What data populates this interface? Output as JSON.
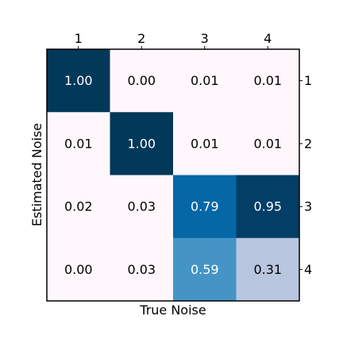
{
  "chart_data": {
    "type": "heatmap",
    "title": "",
    "xlabel": "True Noise",
    "ylabel": "Estimated Noise",
    "x_tick_labels": [
      "1",
      "2",
      "3",
      "4"
    ],
    "y_tick_labels": [
      "1",
      "2",
      "3",
      "4"
    ],
    "x_tick_position": "top",
    "y_tick_position": "right",
    "colormap": "PuBu",
    "vmin": 0,
    "vmax": 1,
    "values": [
      [
        1.0,
        0.0,
        0.01,
        0.01
      ],
      [
        0.01,
        1.0,
        0.01,
        0.01
      ],
      [
        0.02,
        0.03,
        0.79,
        0.95
      ],
      [
        0.0,
        0.03,
        0.59,
        0.31
      ]
    ],
    "value_labels": [
      [
        "1.00",
        "0.00",
        "0.01",
        "0.01"
      ],
      [
        "0.01",
        "1.00",
        "0.01",
        "0.01"
      ],
      [
        "0.02",
        "0.03",
        "0.79",
        "0.95"
      ],
      [
        "0.00",
        "0.03",
        "0.59",
        "0.31"
      ]
    ],
    "cell_colors": [
      [
        "#023858",
        "#fff7fb",
        "#fff7fb",
        "#fff7fb"
      ],
      [
        "#fff7fb",
        "#023858",
        "#fff7fb",
        "#fff7fb"
      ],
      [
        "#fff7fb",
        "#fff7fb",
        "#0567a6",
        "#023e65"
      ],
      [
        "#fff7fb",
        "#fff7fb",
        "#4495c6",
        "#b9c6e0"
      ]
    ],
    "grid": false,
    "legend": "none"
  }
}
